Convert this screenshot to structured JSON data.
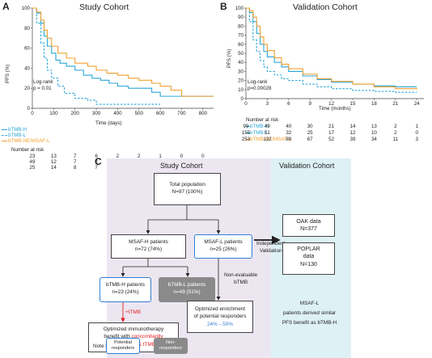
{
  "panel_a": {
    "letter": "A",
    "title": "Study Cohort",
    "ylabel": "PFS (%)",
    "xlabel": "Time (days)",
    "logrank_label": "Log-rank",
    "pvalue": "p = 0.01",
    "number_at_risk_label": "Number at risk",
    "legend": [
      "bTMB-H",
      "bTMB-L",
      "bTMB-NE/MSAF-L"
    ]
  },
  "panel_b": {
    "letter": "B",
    "title": "Validation Cohort",
    "ylabel": "PFS (%)",
    "xlabel": "Time (months)",
    "logrank_label": "Log-rank",
    "pvalue": "p=0.00028",
    "number_at_risk_label": "Number at risk",
    "legend": [
      "bTMB-H",
      "bTMB-L",
      "bTMB-NE/MSAF-L"
    ]
  },
  "chart_data": [
    {
      "type": "line",
      "title": "Study Cohort",
      "xlabel": "Time (days)",
      "ylabel": "PFS (%)",
      "xlim": [
        0,
        850
      ],
      "ylim": [
        0,
        100
      ],
      "x_ticks": [
        0,
        100,
        200,
        300,
        400,
        500,
        600,
        700,
        800
      ],
      "y_ticks": [
        0,
        20,
        40,
        60,
        80,
        100
      ],
      "series": [
        {
          "name": "bTMB-H",
          "color": "#2aa6d6",
          "style": "solid",
          "x": [
            0,
            20,
            40,
            55,
            70,
            90,
            110,
            130,
            160,
            200,
            240,
            280,
            320,
            360,
            400,
            450,
            500,
            560,
            600,
            640,
            850
          ],
          "y": [
            100,
            95,
            85,
            72,
            62,
            55,
            48,
            45,
            42,
            38,
            33,
            30,
            28,
            25,
            22,
            20,
            20,
            16,
            12,
            12,
            12
          ]
        },
        {
          "name": "bTMB-L",
          "color": "#2aa6d6",
          "style": "dashed",
          "x": [
            0,
            20,
            40,
            55,
            70,
            90,
            120,
            150,
            200,
            260,
            300,
            350,
            420,
            500,
            560,
            600
          ],
          "y": [
            100,
            85,
            65,
            50,
            38,
            30,
            22,
            15,
            10,
            8,
            4,
            4,
            4,
            4,
            4,
            4
          ]
        },
        {
          "name": "bTMB-NE/MSAF-L",
          "color": "#f0a030",
          "style": "solid",
          "x": [
            0,
            20,
            40,
            55,
            70,
            90,
            120,
            160,
            200,
            260,
            300,
            350,
            400,
            450,
            500,
            560,
            600,
            650,
            700,
            850
          ],
          "y": [
            100,
            96,
            88,
            78,
            70,
            62,
            55,
            50,
            45,
            42,
            38,
            35,
            33,
            30,
            28,
            25,
            22,
            18,
            12,
            12
          ]
        }
      ],
      "number_at_risk": {
        "time_points": [
          0,
          100,
          200,
          300,
          400,
          500,
          600,
          700,
          800
        ],
        "rows": [
          {
            "name": "bTMB-H",
            "values": [
              23,
              13,
              7,
              6,
              2,
              2,
              1,
              0,
              0
            ]
          },
          {
            "name": "bTMB-L",
            "values": [
              49,
              12,
              7,
              2,
              2,
              1,
              1,
              0,
              0
            ]
          },
          {
            "name": "bTMB-NE/MSAF-L",
            "values": [
              25,
              14,
              8,
              7,
              5,
              3,
              2,
              1,
              1
            ]
          }
        ]
      }
    },
    {
      "type": "line",
      "title": "Validation Cohort",
      "xlabel": "Time (months)",
      "ylabel": "PFS (%)",
      "xlim": [
        0,
        25
      ],
      "ylim": [
        0,
        100
      ],
      "x_ticks": [
        0,
        3,
        6,
        9,
        12,
        15,
        18,
        21,
        24
      ],
      "y_ticks": [
        0,
        10,
        20,
        30,
        40,
        50,
        60,
        70,
        80,
        90,
        100
      ],
      "series": [
        {
          "name": "bTMB-H",
          "color": "#2aa6d6",
          "style": "solid",
          "x": [
            0,
            0.5,
            1,
            1.5,
            2,
            2.5,
            3,
            4,
            5,
            6,
            8,
            10,
            12,
            15,
            18,
            21,
            24
          ],
          "y": [
            100,
            95,
            85,
            72,
            60,
            52,
            46,
            40,
            35,
            30,
            25,
            21,
            18,
            16,
            14,
            13,
            13
          ]
        },
        {
          "name": "bTMB-L",
          "color": "#2aa6d6",
          "style": "dashed",
          "x": [
            0,
            0.5,
            1,
            1.5,
            2,
            2.5,
            3,
            4,
            5,
            6,
            8,
            10,
            12,
            15,
            18,
            21,
            24
          ],
          "y": [
            100,
            85,
            65,
            52,
            42,
            35,
            30,
            26,
            22,
            20,
            16,
            13,
            11,
            9,
            8,
            7,
            7
          ]
        },
        {
          "name": "bTMB-NE/MSAF-L",
          "color": "#f0a030",
          "style": "solid",
          "x": [
            0,
            0.5,
            1,
            1.5,
            2,
            2.5,
            3,
            4,
            5,
            6,
            8,
            10,
            12,
            15,
            18,
            21,
            24
          ],
          "y": [
            100,
            97,
            90,
            80,
            68,
            60,
            53,
            45,
            38,
            33,
            27,
            22,
            19,
            16,
            13,
            11,
            10
          ]
        }
      ],
      "number_at_risk": {
        "time_points": [
          0,
          3,
          6,
          9,
          12,
          15,
          18,
          21,
          24
        ],
        "rows": [
          {
            "name": "bTMB-H",
            "values": [
              99,
              49,
              40,
              30,
              21,
              14,
              13,
              2,
              1
            ]
          },
          {
            "name": "bTMB-L",
            "values": [
              155,
              51,
              32,
              25,
              17,
              12,
              10,
              2,
              0
            ]
          },
          {
            "name": "bTMB-NE/MSAF-L",
            "values": [
              253,
              132,
              89,
              67,
              52,
              39,
              34,
              11,
              3
            ]
          }
        ]
      }
    }
  ],
  "panel_c": {
    "letter": "C",
    "study_title": "Study Cohort",
    "validation_title": "Validation Cohort",
    "total_l1": "Total population",
    "total_l2": "N=97 (100%)",
    "msafh_l1": "MSAF-H patients",
    "msafh_l2": "n=72 (74%)",
    "msafl_l1": "MSAF-L patients",
    "msafl_l2": "n=25 (26%)",
    "btmbh_l1": "bTMB-H patients",
    "btmbh_l2": "n=23 (24%)",
    "btmbl_l1": "bTMB-L patients",
    "btmbl_l2": "n=49 (51%)",
    "independent_l1": "Independent",
    "independent_l2": "Validation",
    "nonevaluable_l1": "Non-evaluable",
    "nonevaluable_l2": "bTMB",
    "ttmb": "+tTMB",
    "opt_immuno_l1": "Optimized immunotherapy",
    "opt_immuno_l2a": "benefit with ",
    "opt_immuno_l2b": "concomitantly",
    "opt_immuno_l3": "high bTMB & tTMB",
    "opt_enrich_l1": "Optimized enrichment",
    "opt_enrich_l2": "of potential responders",
    "opt_enrich_l3": "24%→50%",
    "oak_l1": "OAK data",
    "oak_l2": "N=377",
    "poplar_l1": "POPLAR",
    "poplar_l2": "data",
    "poplar_l3": "N=130",
    "msafl_note_l1": "MSAF-L",
    "msafl_note_l2": "patients derived similar",
    "msafl_note_l3": "PFS benefit as bTMB-H",
    "note_label": "Note :",
    "legend_potential_l1": "Potential",
    "legend_potential_l2": "responders",
    "legend_non_l1": "Non-",
    "legend_non_l2": "responders",
    "colors": {
      "blue": "#2f7fd3",
      "red": "#e02020",
      "cyan": "#2aa6d6",
      "orange": "#f0a030",
      "study_bg": "#ece6f1",
      "validation_bg": "#def1f5"
    }
  }
}
